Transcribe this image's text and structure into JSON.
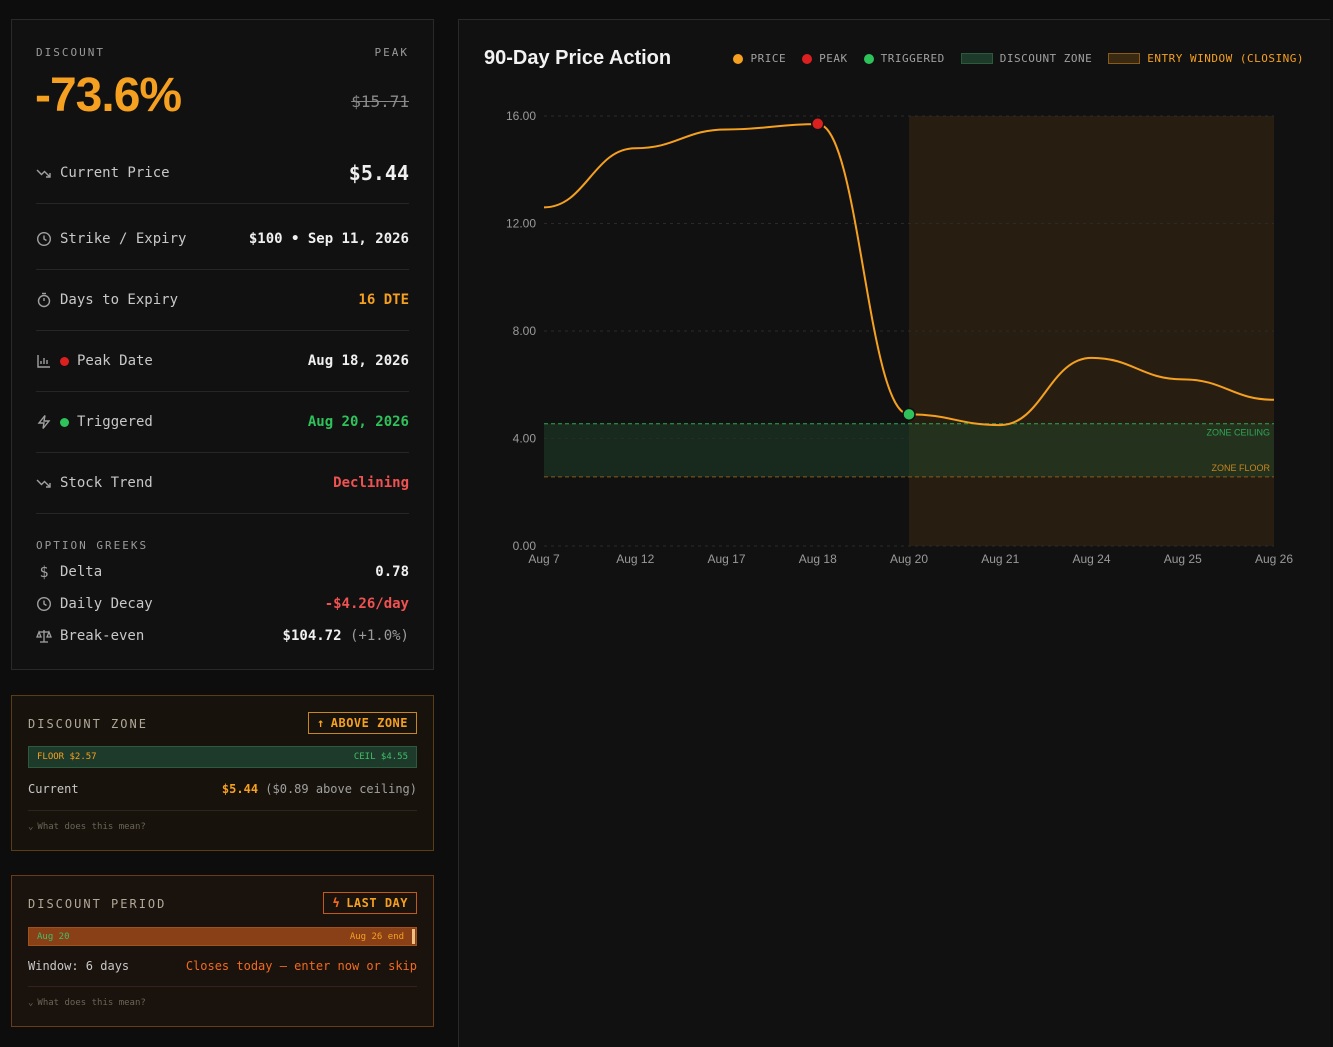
{
  "summary": {
    "discount_label": "DISCOUNT",
    "discount_value": "-73.6%",
    "peak_label": "PEAK",
    "peak_value": "$15.71"
  },
  "rows": [
    {
      "icon": "trend-down-icon",
      "label": "Current Price",
      "value": "$5.44",
      "value_color": "#ffffff"
    },
    {
      "icon": "clock-icon",
      "label": "Strike / Expiry",
      "value": "$100 • Sep 11, 2026",
      "value_color": "#f0f0f0"
    },
    {
      "icon": "timer-icon",
      "label": "Days to Expiry",
      "value": "16 DTE",
      "value_color": "#f5a020"
    },
    {
      "icon": "bar-chart-icon",
      "dot": "#dc2020",
      "label": "Peak Date",
      "value": "Aug 18, 2026",
      "value_color": "#f0f0f0"
    },
    {
      "icon": "lightning-icon",
      "dot": "#2fc25b",
      "label": "Triggered",
      "value": "Aug 20, 2026",
      "value_color": "#2fc25b"
    },
    {
      "icon": "trend-down-icon",
      "label": "Stock Trend",
      "value": "Declining",
      "value_color": "#f05252"
    }
  ],
  "greeks": {
    "title": "OPTION GREEKS",
    "items": [
      {
        "icon": "dollar-icon",
        "label": "Delta",
        "value": "0.78",
        "note": "",
        "value_color": "#ffffff"
      },
      {
        "icon": "clock-icon",
        "label": "Daily Decay",
        "value": "-$4.26/day",
        "note": "",
        "value_color": "#f05252"
      },
      {
        "icon": "scale-icon",
        "label": "Break-even",
        "value": "$104.72",
        "note": "(+1.0%)",
        "value_color": "#ffffff"
      }
    ]
  },
  "discount_zone": {
    "title": "DISCOUNT ZONE",
    "badge": "ABOVE ZONE",
    "floor": "FLOOR $2.57",
    "ceil": "CEIL $4.55",
    "current_label": "Current",
    "current_value": "$5.44",
    "current_note": "($0.89 above ceiling)",
    "help": "What does this mean?"
  },
  "discount_period": {
    "title": "DISCOUNT PERIOD",
    "badge": "LAST DAY",
    "start": "Aug 20",
    "end": "Aug 26 end",
    "window": "Window: 6 days",
    "closes": "Closes today — enter now or skip",
    "help": "What does this mean?",
    "progress": 1.0
  },
  "chart": {
    "title": "90-Day Price Action",
    "legend": [
      {
        "label": "PRICE",
        "kind": "dot",
        "color": "#f5a020"
      },
      {
        "label": "PEAK",
        "kind": "dot",
        "color": "#dc2020"
      },
      {
        "label": "TRIGGERED",
        "kind": "dot",
        "color": "#2fc25b"
      },
      {
        "label": "DISCOUNT ZONE",
        "kind": "box",
        "color": "#1e3a2a",
        "border": "#2b5a3c"
      },
      {
        "label": "ENTRY WINDOW (CLOSING)",
        "kind": "box",
        "color": "#3a2a12",
        "border": "#8a5a1c",
        "text_color": "#f5a020"
      }
    ],
    "zone_ceiling_label": "ZONE CEILING",
    "zone_floor_label": "ZONE FLOOR"
  },
  "chart_data": {
    "type": "line",
    "title": "90-Day Price Action",
    "x": [
      "Aug 7",
      "Aug 12",
      "Aug 17",
      "Aug 18",
      "Aug 20",
      "Aug 21",
      "Aug 24",
      "Aug 25",
      "Aug 26"
    ],
    "series": [
      {
        "name": "PRICE",
        "values": [
          12.6,
          14.8,
          15.5,
          15.7,
          4.9,
          4.5,
          7.0,
          6.2,
          5.44
        ]
      }
    ],
    "ylim": [
      0,
      16
    ],
    "yticks": [
      "0.00",
      "4.00",
      "8.00",
      "12.00",
      "16.00"
    ],
    "peak": {
      "x": "Aug 18",
      "y": 15.71
    },
    "triggered": {
      "x": "Aug 20",
      "y": 4.9
    },
    "discount_zone": {
      "floor": 2.57,
      "ceiling": 4.55
    },
    "entry_window": {
      "start": "Aug 20",
      "end": "Aug 26"
    },
    "grid": true
  },
  "colors": {
    "accent": "#f5a020",
    "danger": "#f05252",
    "success": "#2fc25b",
    "peak": "#dc2020"
  }
}
